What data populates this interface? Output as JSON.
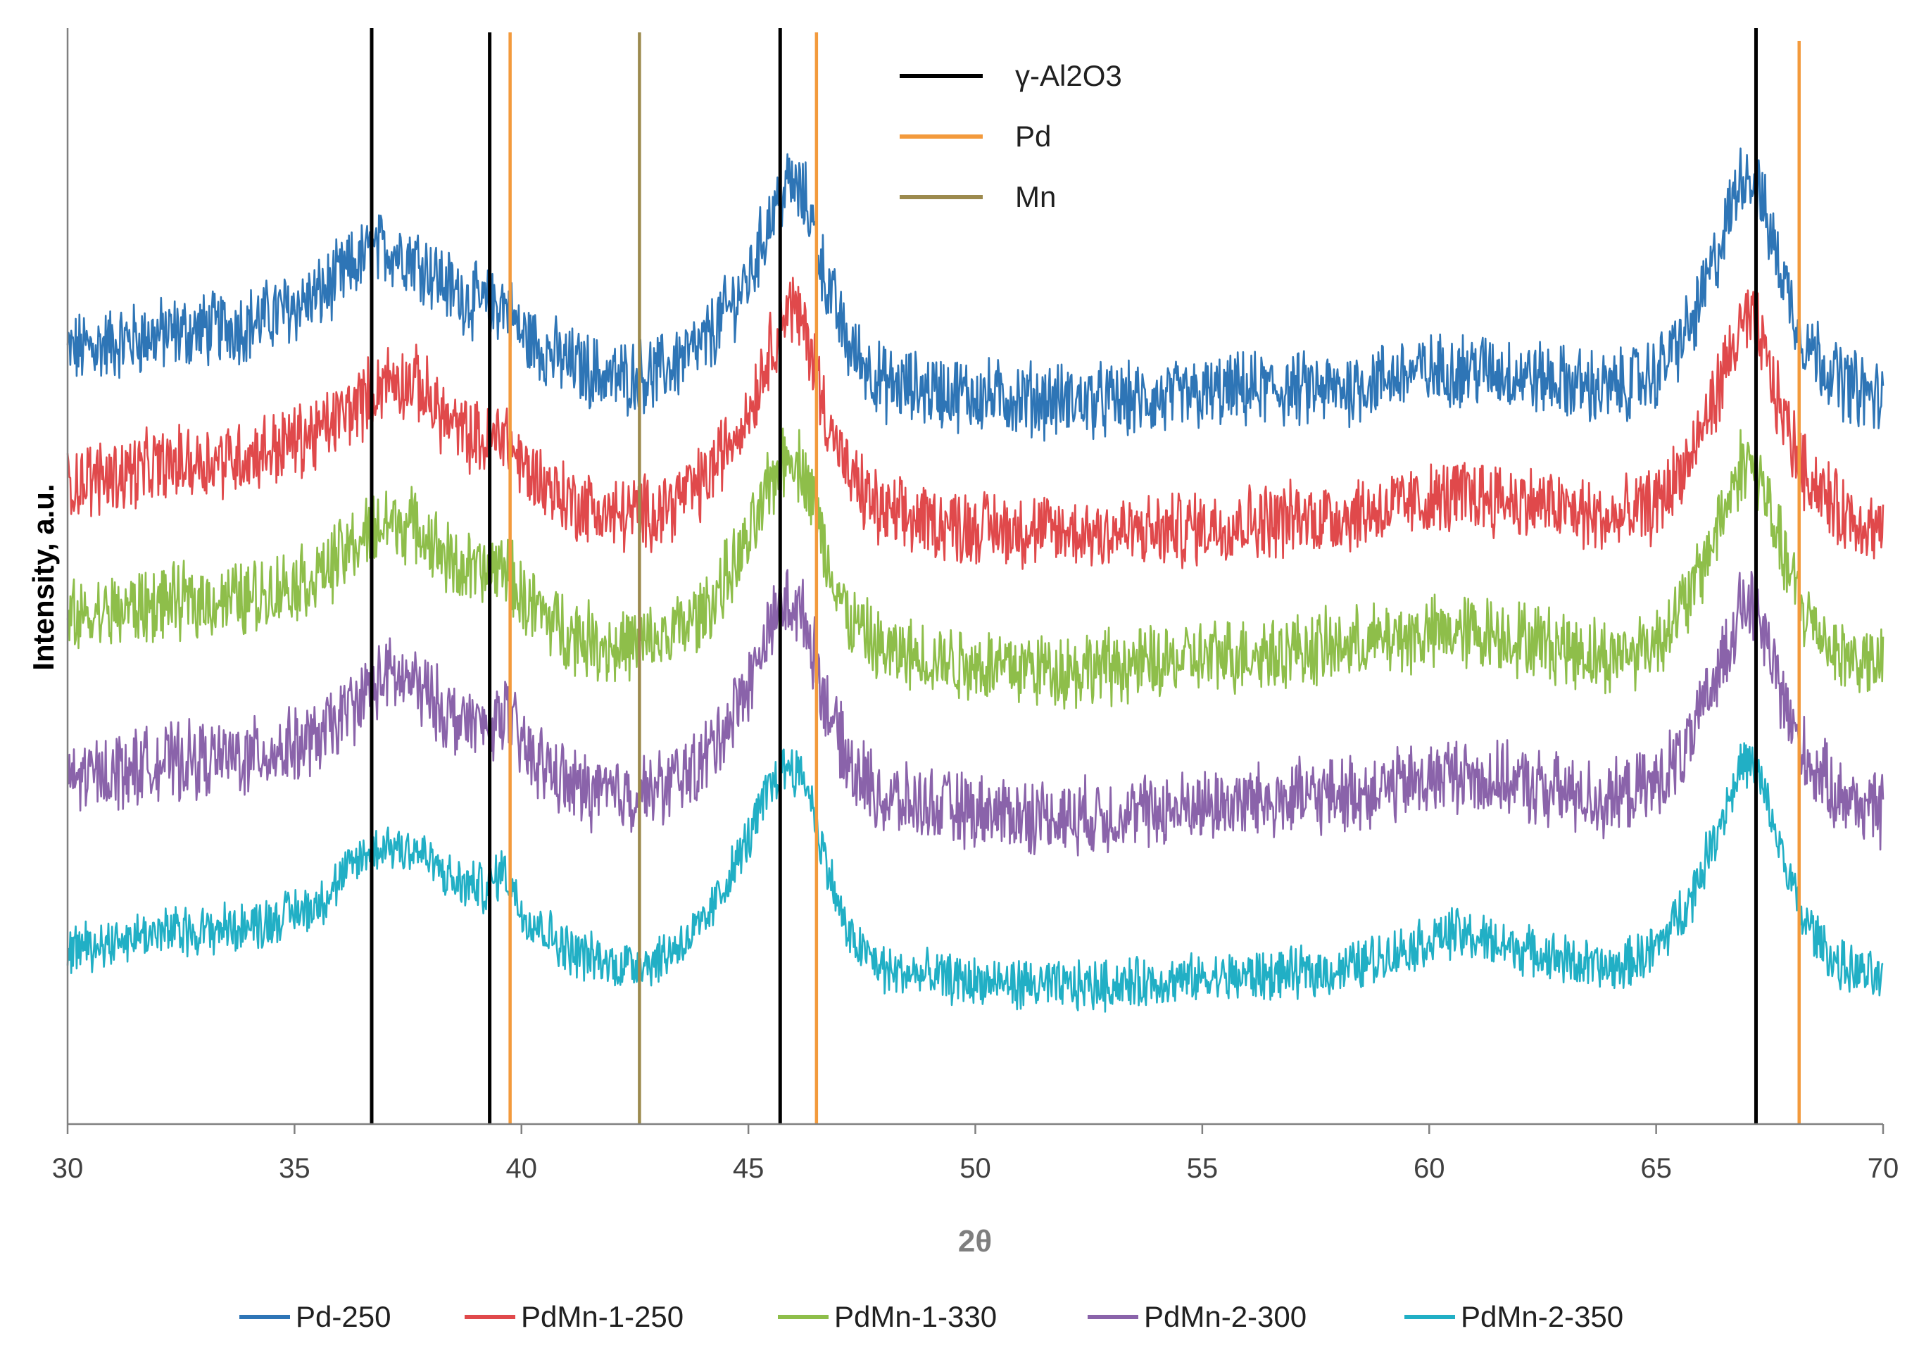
{
  "chart_data": {
    "type": "line",
    "title": "",
    "xlabel": "2θ",
    "ylabel": "Intensity, a.u.",
    "xlim": [
      30,
      70
    ],
    "x_ticks": [
      30,
      35,
      40,
      45,
      50,
      55,
      60,
      65,
      70
    ],
    "ylim": [
      0,
      100
    ],
    "y_ticks_visible": false,
    "grid": false,
    "legend_position": "bottom",
    "series": [
      {
        "name": "Pd-250",
        "color": "#2E75B6",
        "noise": 3.0,
        "points": [
          [
            30,
            70.5
          ],
          [
            32,
            72
          ],
          [
            34,
            73
          ],
          [
            35.5,
            75.5
          ],
          [
            36.5,
            79
          ],
          [
            37,
            80
          ],
          [
            37.7,
            79
          ],
          [
            38.5,
            76
          ],
          [
            39.3,
            74.5
          ],
          [
            39.6,
            75
          ],
          [
            40,
            72
          ],
          [
            41,
            69.5
          ],
          [
            42,
            68
          ],
          [
            43,
            68.5
          ],
          [
            44,
            71
          ],
          [
            45,
            77
          ],
          [
            45.5,
            83
          ],
          [
            45.9,
            86
          ],
          [
            46.3,
            84
          ],
          [
            46.7,
            77
          ],
          [
            47.2,
            71
          ],
          [
            48,
            67.5
          ],
          [
            50,
            66.5
          ],
          [
            52,
            66
          ],
          [
            54,
            66
          ],
          [
            56,
            67
          ],
          [
            58,
            67
          ],
          [
            59.5,
            68.5
          ],
          [
            61,
            69
          ],
          [
            62.5,
            68
          ],
          [
            64,
            67
          ],
          [
            65,
            68.5
          ],
          [
            65.8,
            73
          ],
          [
            66.4,
            80
          ],
          [
            66.9,
            87
          ],
          [
            67.2,
            86
          ],
          [
            67.6,
            80
          ],
          [
            68.2,
            72
          ],
          [
            69,
            68
          ],
          [
            70,
            66
          ]
        ]
      },
      {
        "name": "PdMn-1-250",
        "color": "#E0494B",
        "noise": 3.0,
        "points": [
          [
            30,
            58.5
          ],
          [
            32,
            60
          ],
          [
            34,
            61
          ],
          [
            35.5,
            63
          ],
          [
            36.5,
            66
          ],
          [
            37,
            68
          ],
          [
            37.7,
            67.5
          ],
          [
            38.5,
            63.5
          ],
          [
            39.3,
            62
          ],
          [
            39.6,
            63.5
          ],
          [
            40,
            60
          ],
          [
            41,
            57
          ],
          [
            42,
            55.5
          ],
          [
            43,
            56
          ],
          [
            44,
            58.5
          ],
          [
            45,
            65
          ],
          [
            45.5,
            71
          ],
          [
            45.9,
            75
          ],
          [
            46.3,
            72
          ],
          [
            46.7,
            65
          ],
          [
            47.2,
            59
          ],
          [
            48,
            55.5
          ],
          [
            50,
            54.5
          ],
          [
            52,
            54
          ],
          [
            54,
            54
          ],
          [
            56,
            55
          ],
          [
            58,
            55.5
          ],
          [
            59.5,
            56.5
          ],
          [
            61,
            57.5
          ],
          [
            62.5,
            56.5
          ],
          [
            64,
            55
          ],
          [
            65,
            56.5
          ],
          [
            65.8,
            61
          ],
          [
            66.4,
            67.5
          ],
          [
            66.9,
            73
          ],
          [
            67.2,
            73
          ],
          [
            67.6,
            67
          ],
          [
            68.2,
            60
          ],
          [
            69,
            56
          ],
          [
            70,
            54
          ]
        ]
      },
      {
        "name": "PdMn-1-330",
        "color": "#8EBE4A",
        "noise": 3.0,
        "points": [
          [
            30,
            46
          ],
          [
            32,
            47.5
          ],
          [
            34,
            48
          ],
          [
            35.5,
            50
          ],
          [
            36.5,
            53.5
          ],
          [
            37,
            55
          ],
          [
            37.7,
            54.5
          ],
          [
            38.5,
            51
          ],
          [
            39.3,
            50
          ],
          [
            39.6,
            51.5
          ],
          [
            40,
            48
          ],
          [
            41,
            45
          ],
          [
            42,
            43.5
          ],
          [
            43,
            44
          ],
          [
            44,
            46.5
          ],
          [
            45,
            53
          ],
          [
            45.5,
            58.5
          ],
          [
            45.9,
            61.5
          ],
          [
            46.3,
            59
          ],
          [
            46.7,
            52
          ],
          [
            47.2,
            46
          ],
          [
            48,
            43
          ],
          [
            50,
            42
          ],
          [
            52,
            41.5
          ],
          [
            54,
            42
          ],
          [
            56,
            43
          ],
          [
            58,
            43.5
          ],
          [
            59.5,
            44.5
          ],
          [
            61,
            45
          ],
          [
            62.5,
            44
          ],
          [
            64,
            42.5
          ],
          [
            65,
            44
          ],
          [
            65.8,
            48.5
          ],
          [
            66.4,
            55
          ],
          [
            66.9,
            60.5
          ],
          [
            67.2,
            60
          ],
          [
            67.6,
            54.5
          ],
          [
            68.2,
            47
          ],
          [
            69,
            43
          ],
          [
            70,
            41.5
          ]
        ]
      },
      {
        "name": "PdMn-2-300",
        "color": "#8A63AA",
        "noise": 3.0,
        "points": [
          [
            30,
            31.5
          ],
          [
            32,
            33
          ],
          [
            34,
            33.5
          ],
          [
            35.5,
            35
          ],
          [
            36.5,
            39
          ],
          [
            37,
            41
          ],
          [
            37.7,
            40
          ],
          [
            38.5,
            37
          ],
          [
            39.3,
            36
          ],
          [
            39.6,
            38
          ],
          [
            40,
            34.5
          ],
          [
            41,
            31
          ],
          [
            42,
            30
          ],
          [
            43,
            30.5
          ],
          [
            44,
            33
          ],
          [
            45,
            40
          ],
          [
            45.5,
            45.5
          ],
          [
            45.9,
            48
          ],
          [
            46.3,
            45.5
          ],
          [
            46.7,
            38.5
          ],
          [
            47.2,
            33
          ],
          [
            48,
            29.5
          ],
          [
            50,
            28.5
          ],
          [
            52,
            28
          ],
          [
            54,
            28.5
          ],
          [
            56,
            29.5
          ],
          [
            58,
            30
          ],
          [
            59.5,
            31
          ],
          [
            60.5,
            32
          ],
          [
            62,
            31
          ],
          [
            64,
            29.5
          ],
          [
            65,
            31
          ],
          [
            65.8,
            35
          ],
          [
            66.4,
            42
          ],
          [
            66.9,
            47.5
          ],
          [
            67.2,
            47
          ],
          [
            67.6,
            41.5
          ],
          [
            68.2,
            34
          ],
          [
            69,
            30
          ],
          [
            70,
            28.5
          ]
        ]
      },
      {
        "name": "PdMn-2-350",
        "color": "#21AFC5",
        "noise": 2.0,
        "points": [
          [
            30,
            16
          ],
          [
            32,
            17.5
          ],
          [
            34,
            18
          ],
          [
            35.5,
            20
          ],
          [
            36.5,
            24.5
          ],
          [
            37,
            25.5
          ],
          [
            37.7,
            25
          ],
          [
            38.5,
            22
          ],
          [
            39.3,
            21.5
          ],
          [
            39.6,
            23.5
          ],
          [
            40,
            19.5
          ],
          [
            41,
            16
          ],
          [
            42,
            14.5
          ],
          [
            43,
            15
          ],
          [
            44,
            18
          ],
          [
            45,
            26
          ],
          [
            45.5,
            31
          ],
          [
            45.9,
            33
          ],
          [
            46.3,
            31
          ],
          [
            46.7,
            24
          ],
          [
            47.2,
            17
          ],
          [
            48,
            14
          ],
          [
            50,
            13
          ],
          [
            52,
            12.5
          ],
          [
            54,
            13
          ],
          [
            56,
            13.5
          ],
          [
            58,
            14
          ],
          [
            59.5,
            16
          ],
          [
            60.5,
            17.5
          ],
          [
            62,
            16
          ],
          [
            64,
            14
          ],
          [
            65,
            16
          ],
          [
            65.8,
            21
          ],
          [
            66.4,
            27.5
          ],
          [
            66.9,
            33
          ],
          [
            67.2,
            32.5
          ],
          [
            67.6,
            27
          ],
          [
            68.2,
            19
          ],
          [
            69,
            14.5
          ],
          [
            70,
            13
          ]
        ]
      }
    ],
    "reference_groups": [
      {
        "name": "γ-Al2O3",
        "color": "#000000",
        "positions": [
          36.7,
          39.3,
          45.7,
          67.2
        ]
      },
      {
        "name": "Pd",
        "color": "#F39A3C",
        "positions": [
          39.75,
          46.5,
          68.15
        ]
      },
      {
        "name": "Mn",
        "color": "#9C8A4E",
        "positions": [
          42.6
        ]
      }
    ]
  }
}
